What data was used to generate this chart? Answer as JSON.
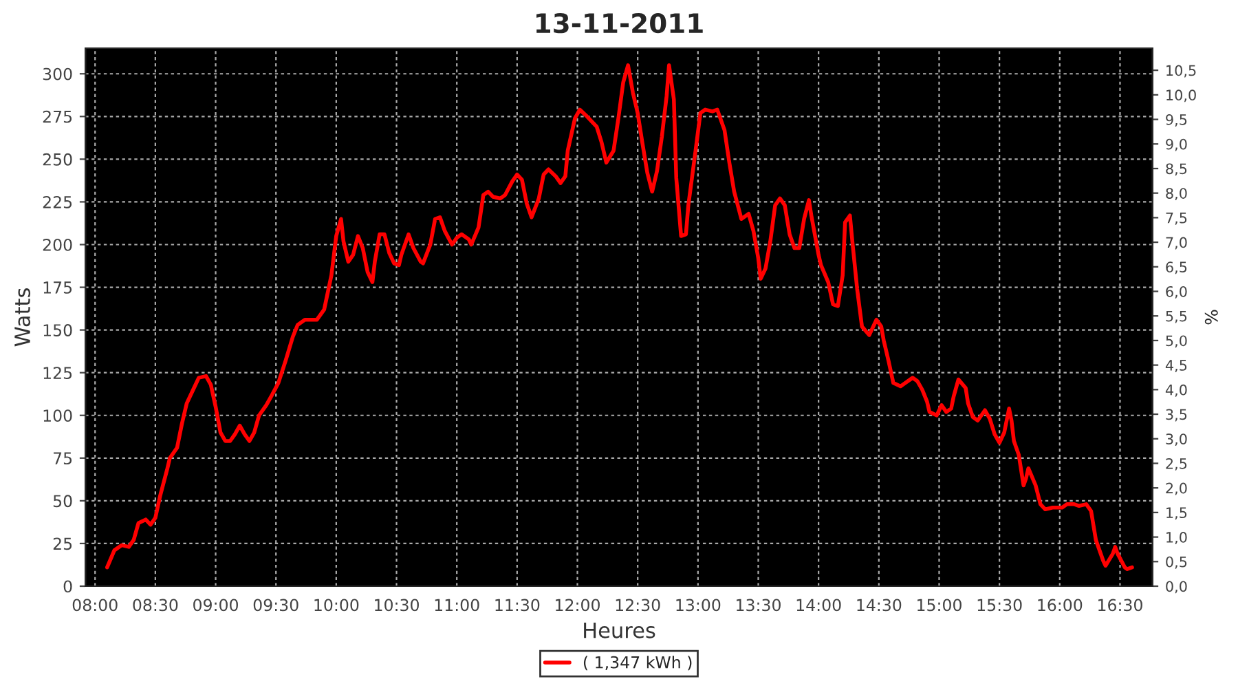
{
  "chart_data": {
    "type": "line",
    "title": "13-11-2011",
    "xlabel": "Heures",
    "ylabel": "Watts",
    "y2label": "%",
    "x": [
      8.1,
      8.16,
      8.22,
      8.28,
      8.32,
      8.36,
      8.42,
      8.46,
      8.5,
      8.54,
      8.6,
      8.62,
      8.68,
      8.72,
      8.76,
      8.82,
      8.86,
      8.92,
      8.96,
      9.0,
      9.04,
      9.08,
      9.12,
      9.16,
      9.2,
      9.24,
      9.28,
      9.32,
      9.36,
      9.42,
      9.46,
      9.52,
      9.58,
      9.64,
      9.68,
      9.74,
      9.84,
      9.9,
      9.96,
      10.0,
      10.04,
      10.06,
      10.1,
      10.14,
      10.18,
      10.22,
      10.26,
      10.3,
      10.32,
      10.36,
      10.4,
      10.44,
      10.48,
      10.52,
      10.54,
      10.6,
      10.64,
      10.7,
      10.72,
      10.78,
      10.82,
      10.86,
      10.9,
      10.96,
      11.0,
      11.04,
      11.1,
      11.12,
      11.18,
      11.22,
      11.26,
      11.3,
      11.36,
      11.4,
      11.46,
      11.5,
      11.54,
      11.58,
      11.62,
      11.68,
      11.72,
      11.76,
      11.82,
      11.86,
      11.9,
      11.92,
      11.98,
      12.02,
      12.08,
      12.16,
      12.2,
      12.24,
      12.3,
      12.34,
      12.38,
      12.42,
      12.46,
      12.5,
      12.54,
      12.58,
      12.62,
      12.66,
      12.7,
      12.74,
      12.76,
      12.8,
      12.82,
      12.86,
      12.9,
      12.92,
      12.98,
      13.02,
      13.06,
      13.12,
      13.16,
      13.22,
      13.26,
      13.3,
      13.36,
      13.4,
      13.42,
      13.46,
      13.5,
      13.52,
      13.56,
      13.6,
      13.64,
      13.68,
      13.72,
      13.76,
      13.8,
      13.84,
      13.88,
      13.92,
      13.94,
      14.0,
      14.02,
      14.08,
      14.12,
      14.16,
      14.2,
      14.22,
      14.26,
      14.28,
      14.32,
      14.36,
      14.42,
      14.44,
      14.48,
      14.52,
      14.54,
      14.58,
      14.62,
      14.68,
      14.72,
      14.78,
      14.82,
      14.86,
      14.9,
      14.92,
      14.98,
      15.02,
      15.06,
      15.1,
      15.12,
      15.16,
      15.22,
      15.24,
      15.28,
      15.32,
      15.34,
      15.38,
      15.42,
      15.46,
      15.5,
      15.54,
      15.58,
      15.6,
      15.62,
      15.66,
      15.7,
      15.72,
      15.74,
      15.8,
      15.84,
      15.88,
      15.94,
      15.98,
      16.02,
      16.06,
      16.12,
      16.16,
      16.22,
      16.26,
      16.3,
      16.36,
      16.38,
      16.44,
      16.46,
      16.48,
      16.54,
      16.56,
      16.6
    ],
    "series": [
      {
        "name": "( 1,347 kWh )",
        "color": "#ff0000",
        "values": [
          11,
          21,
          24,
          23,
          27,
          37,
          39,
          36,
          40,
          53,
          69,
          75,
          81,
          95,
          107,
          116,
          122,
          123,
          118,
          105,
          90,
          85,
          85,
          89,
          94,
          89,
          85,
          90,
          100,
          106,
          111,
          119,
          132,
          146,
          153,
          156,
          156,
          162,
          182,
          205,
          215,
          202,
          190,
          194,
          205,
          198,
          184,
          178,
          190,
          206,
          206,
          195,
          189,
          188,
          194,
          206,
          198,
          190,
          189,
          200,
          215,
          216,
          208,
          200,
          204,
          206,
          203,
          200,
          210,
          229,
          231,
          228,
          227,
          229,
          237,
          241,
          238,
          224,
          216,
          227,
          241,
          244,
          240,
          236,
          240,
          255,
          274,
          279,
          275,
          269,
          260,
          248,
          255,
          274,
          295,
          305,
          289,
          277,
          259,
          242,
          231,
          243,
          263,
          287,
          305,
          285,
          239,
          205,
          206,
          223,
          255,
          277,
          279,
          278,
          279,
          267,
          248,
          231,
          215,
          217,
          218,
          208,
          192,
          180,
          186,
          202,
          223,
          227,
          223,
          206,
          198,
          198,
          215,
          226,
          217,
          194,
          188,
          178,
          165,
          164,
          182,
          213,
          217,
          202,
          174,
          152,
          147,
          150,
          156,
          152,
          144,
          132,
          119,
          117,
          119,
          122,
          120,
          115,
          108,
          102,
          100,
          106,
          102,
          104,
          111,
          121,
          116,
          107,
          99,
          97,
          99,
          103,
          98,
          89,
          84,
          90,
          104,
          97,
          85,
          77,
          59,
          63,
          69,
          59,
          48,
          45,
          46,
          46,
          46,
          48,
          48,
          47,
          48,
          44,
          27,
          15,
          12,
          19,
          23,
          19,
          11,
          10,
          11
        ]
      }
    ],
    "xlim": [
      7.92,
      16.77
    ],
    "xticks": [
      {
        "value": 8,
        "label": "08:00"
      },
      {
        "value": 8.5,
        "label": "08:30"
      },
      {
        "value": 9,
        "label": "09:00"
      },
      {
        "value": 9.5,
        "label": "09:30"
      },
      {
        "value": 10,
        "label": "10:00"
      },
      {
        "value": 10.5,
        "label": "10:30"
      },
      {
        "value": 11,
        "label": "11:00"
      },
      {
        "value": 11.5,
        "label": "11:30"
      },
      {
        "value": 12,
        "label": "12:00"
      },
      {
        "value": 12.5,
        "label": "12:30"
      },
      {
        "value": 13,
        "label": "13:00"
      },
      {
        "value": 13.5,
        "label": "13:30"
      },
      {
        "value": 14,
        "label": "14:00"
      },
      {
        "value": 14.5,
        "label": "14:30"
      },
      {
        "value": 15,
        "label": "15:00"
      },
      {
        "value": 15.5,
        "label": "15:30"
      },
      {
        "value": 16,
        "label": "16:00"
      },
      {
        "value": 16.5,
        "label": "16:30"
      }
    ],
    "ylim": [
      0,
      315
    ],
    "yticks": [
      0,
      25,
      50,
      75,
      100,
      125,
      150,
      175,
      200,
      225,
      250,
      275,
      300
    ],
    "y2lim": [
      0,
      10.95
    ],
    "y2ticks": [
      {
        "value": 0,
        "label": "0,0"
      },
      {
        "value": 0.5,
        "label": "0,5"
      },
      {
        "value": 1,
        "label": "1,0"
      },
      {
        "value": 1.5,
        "label": "1,5"
      },
      {
        "value": 2,
        "label": "2,0"
      },
      {
        "value": 2.5,
        "label": "2,5"
      },
      {
        "value": 3,
        "label": "3,0"
      },
      {
        "value": 3.5,
        "label": "3,5"
      },
      {
        "value": 4,
        "label": "4,0"
      },
      {
        "value": 4.5,
        "label": "4,5"
      },
      {
        "value": 5,
        "label": "5,0"
      },
      {
        "value": 5.5,
        "label": "5,5"
      },
      {
        "value": 6,
        "label": "6,0"
      },
      {
        "value": 6.5,
        "label": "6,5"
      },
      {
        "value": 7,
        "label": "7,0"
      },
      {
        "value": 7.5,
        "label": "7,5"
      },
      {
        "value": 8,
        "label": "8,0"
      },
      {
        "value": 8.5,
        "label": "8,5"
      },
      {
        "value": 9,
        "label": "9,0"
      },
      {
        "value": 9.5,
        "label": "9,5"
      },
      {
        "value": 10,
        "label": "10,0"
      },
      {
        "value": 10.5,
        "label": "10,5"
      }
    ],
    "grid": true,
    "legend": "bottom",
    "line_style": "solid",
    "marker": "none"
  }
}
